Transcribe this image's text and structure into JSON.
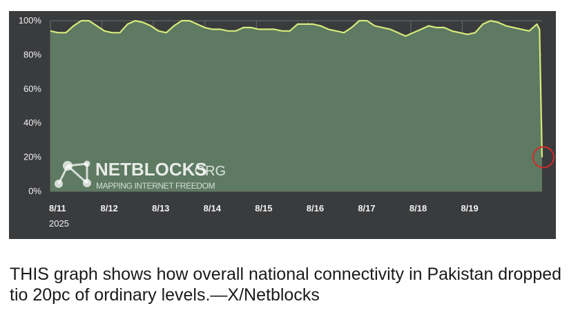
{
  "chart_data": {
    "type": "area",
    "title": "",
    "xlabel": "",
    "ylabel": "",
    "ylim": [
      0,
      100
    ],
    "y_ticks": [
      "0%",
      "20%",
      "40%",
      "60%",
      "80%",
      "100%"
    ],
    "y_tick_values": [
      0,
      20,
      40,
      60,
      80,
      100
    ],
    "x_ticks": [
      "8/11",
      "8/12",
      "8/13",
      "8/14",
      "8/15",
      "8/16",
      "8/17",
      "8/18",
      "8/19"
    ],
    "x_year_label": "2025",
    "x_range_days": [
      11.0,
      20.55
    ],
    "grid": true,
    "colors": {
      "line": "#d6ec7a",
      "fill": "#5e7a62",
      "background": "#3a3b3d",
      "marker": "#d32a2a"
    },
    "series": [
      {
        "x": [
          11.0,
          11.15,
          11.3,
          11.45,
          11.6,
          11.75,
          11.9,
          12.05,
          12.2,
          12.35,
          12.5,
          12.65,
          12.8,
          12.95,
          13.1,
          13.25,
          13.4,
          13.55,
          13.7,
          13.85,
          14.0,
          14.15,
          14.3,
          14.45,
          14.6,
          14.75,
          14.9,
          15.05,
          15.2,
          15.35,
          15.5,
          15.65,
          15.8,
          15.95,
          16.1,
          16.25,
          16.4,
          16.55,
          16.7,
          16.85,
          17.0,
          17.15,
          17.3,
          17.45,
          17.6,
          17.75,
          17.9,
          18.05,
          18.2,
          18.35,
          18.5,
          18.65,
          18.8,
          18.95,
          19.1,
          19.25,
          19.4,
          19.55,
          19.7,
          19.85,
          20.0,
          20.15,
          20.3,
          20.45,
          20.5,
          20.55
        ],
        "y": [
          94,
          93,
          93,
          97,
          100,
          100,
          97,
          94,
          93,
          93,
          98,
          100,
          99,
          97,
          94,
          93,
          97,
          100,
          100,
          98,
          96,
          95,
          95,
          94,
          94,
          96,
          96,
          95,
          95,
          95,
          94,
          94,
          98,
          98,
          98,
          97,
          95,
          94,
          93,
          96,
          100,
          100,
          97,
          96,
          95,
          93,
          91,
          93,
          95,
          97,
          96,
          96,
          94,
          93,
          92,
          93,
          98,
          100,
          99,
          97,
          96,
          95,
          94,
          98,
          95,
          20
        ]
      }
    ],
    "annotations": [
      {
        "type": "circle-marker",
        "x": 20.55,
        "y": 20
      }
    ]
  },
  "watermark": {
    "brand": "NETBLOCKS",
    "domain": ".ORG",
    "tagline": "MAPPING INTERNET FREEDOM"
  },
  "caption": "THIS graph shows how overall national connectivity in Pakistan dropped tio 20pc of ordinary levels.—X/Netblocks"
}
